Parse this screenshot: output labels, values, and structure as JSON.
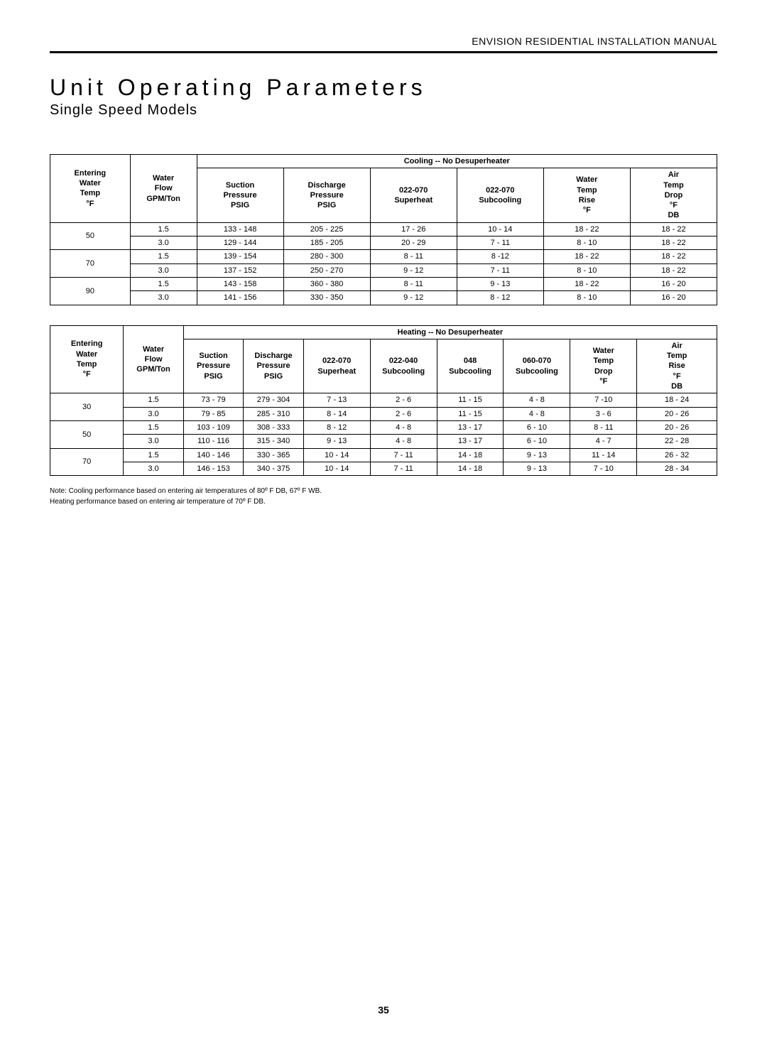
{
  "header": {
    "manual_title": "ENVISION RESIDENTIAL INSTALLATION MANUAL"
  },
  "titles": {
    "main": "Unit Operating Parameters",
    "sub": "Single Speed Models"
  },
  "cooling_table": {
    "span_title": "Cooling -- No Desuperheater",
    "columns": [
      "Entering Water Temp °F",
      "Water Flow GPM/Ton",
      "Suction Pressure PSIG",
      "Discharge Pressure PSIG",
      "022-070 Superheat",
      "022-070 Subcooling",
      "Water Temp Rise °F",
      "Air Temp Drop °F DB"
    ],
    "col_widths": [
      "12%",
      "10%",
      "13%",
      "13%",
      "13%",
      "13%",
      "13%",
      "13%"
    ],
    "rows": [
      {
        "temp": "50",
        "flow": "1.5",
        "c": [
          "133 - 148",
          "205 - 225",
          "17 - 26",
          "10 - 14",
          "18 - 22",
          "18 - 22"
        ]
      },
      {
        "temp": "",
        "flow": "3.0",
        "c": [
          "129 - 144",
          "185 - 205",
          "20 - 29",
          "7 - 11",
          "8 - 10",
          "18 - 22"
        ]
      },
      {
        "temp": "70",
        "flow": "1.5",
        "c": [
          "139 - 154",
          "280 - 300",
          "8 - 11",
          "8 -12",
          "18 - 22",
          "18 - 22"
        ]
      },
      {
        "temp": "",
        "flow": "3.0",
        "c": [
          "137 - 152",
          "250 - 270",
          "9 - 12",
          "7 - 11",
          "8 - 10",
          "18 - 22"
        ]
      },
      {
        "temp": "90",
        "flow": "1.5",
        "c": [
          "143 - 158",
          "360 - 380",
          "8 - 11",
          "9 - 13",
          "18 - 22",
          "16 - 20"
        ]
      },
      {
        "temp": "",
        "flow": "3.0",
        "c": [
          "141 - 156",
          "330 - 350",
          "9 - 12",
          "8 - 12",
          "8 - 10",
          "16 - 20"
        ]
      }
    ]
  },
  "heating_table": {
    "span_title": "Heating -- No Desuperheater",
    "columns": [
      "Entering Water Temp °F",
      "Water Flow GPM/Ton",
      "Suction Pressure PSIG",
      "Discharge Pressure PSIG",
      "022-070 Superheat",
      "022-040 Subcooling",
      "048 Subcooling",
      "060-070 Subcooling",
      "Water Temp Drop °F",
      "Air Temp Rise °F DB"
    ],
    "col_widths": [
      "11%",
      "9%",
      "9%",
      "9%",
      "10%",
      "10%",
      "10%",
      "10%",
      "10%",
      "12%"
    ],
    "rows": [
      {
        "temp": "30",
        "flow": "1.5",
        "c": [
          "73 - 79",
          "279 - 304",
          "7 - 13",
          "2 - 6",
          "11 - 15",
          "4 - 8",
          "7 -10",
          "18 - 24"
        ]
      },
      {
        "temp": "",
        "flow": "3.0",
        "c": [
          "79 - 85",
          "285 - 310",
          "8 - 14",
          "2 - 6",
          "11 - 15",
          "4 - 8",
          "3 - 6",
          "20 - 26"
        ]
      },
      {
        "temp": "50",
        "flow": "1.5",
        "c": [
          "103 - 109",
          "308 - 333",
          "8 - 12",
          "4 - 8",
          "13 - 17",
          "6 - 10",
          "8 - 11",
          "20 - 26"
        ]
      },
      {
        "temp": "",
        "flow": "3.0",
        "c": [
          "110 - 116",
          "315 - 340",
          "9 - 13",
          "4 - 8",
          "13 - 17",
          "6 - 10",
          "4 - 7",
          "22 - 28"
        ]
      },
      {
        "temp": "70",
        "flow": "1.5",
        "c": [
          "140 - 146",
          "330 - 365",
          "10 - 14",
          "7 - 11",
          "14 - 18",
          "9 - 13",
          "11 - 14",
          "26 - 32"
        ]
      },
      {
        "temp": "",
        "flow": "3.0",
        "c": [
          "146 - 153",
          "340 - 375",
          "10 - 14",
          "7 - 11",
          "14 - 18",
          "9 - 13",
          "7 - 10",
          "28 - 34"
        ]
      }
    ]
  },
  "notes": {
    "line1": "Note: Cooling performance based on entering air temperatures of 80º F DB, 67º F WB.",
    "line2": "Heating performance based on entering air temperature of 70º F DB."
  },
  "page_number": "35"
}
